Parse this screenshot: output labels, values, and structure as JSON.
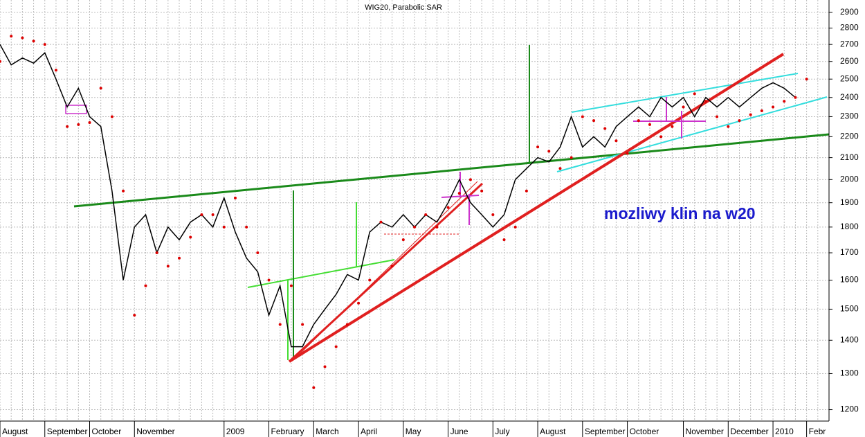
{
  "chart_data": {
    "type": "line",
    "title": "WIG20, Parabolic SAR",
    "annotation": "mozliwy klin na w20",
    "categories": [
      "August",
      null,
      null,
      null,
      "September",
      null,
      null,
      null,
      "October",
      null,
      null,
      null,
      "November",
      null,
      null,
      null,
      null,
      null,
      null,
      null,
      "2009",
      null,
      null,
      null,
      "February",
      null,
      null,
      null,
      "March",
      null,
      null,
      null,
      "April",
      null,
      null,
      null,
      "May",
      null,
      null,
      null,
      "June",
      null,
      null,
      null,
      "July",
      null,
      null,
      null,
      "August",
      null,
      null,
      null,
      "September",
      null,
      null,
      null,
      "October",
      null,
      null,
      null,
      null,
      "November",
      null,
      null,
      null,
      "December",
      null,
      null,
      null,
      "2010",
      null,
      null,
      "Febr",
      null,
      null
    ],
    "series": [
      {
        "color": "#000000",
        "style": "line",
        "values": [
          2700,
          2580,
          2620,
          2590,
          2650,
          2500,
          2350,
          2450,
          2300,
          2250,
          1950,
          1600,
          1800,
          1850,
          1700,
          1800,
          1750,
          1820,
          1850,
          1800,
          1920,
          1780,
          1680,
          1630,
          1480,
          1580,
          1380,
          1380,
          1450,
          1500,
          1550,
          1620,
          1600,
          1780,
          1820,
          1800,
          1850,
          1800,
          1850,
          1820,
          1900,
          2000,
          1900,
          1850,
          1800,
          1850,
          2000,
          2050,
          2100,
          2080,
          2150,
          2300,
          2150,
          2200,
          2150,
          2250,
          2300,
          2350,
          2300,
          2400,
          2350,
          2400,
          2300,
          2400,
          2350,
          2400,
          2350,
          2400,
          2450,
          2480,
          2450,
          2400,
          null,
          null,
          null
        ]
      },
      {
        "color": "#dd0000",
        "style": "dots",
        "values": [
          2600,
          2750,
          2740,
          2720,
          2700,
          2550,
          2250,
          2260,
          2270,
          2450,
          2300,
          1950,
          1480,
          1580,
          1700,
          1650,
          1680,
          1760,
          1850,
          1850,
          1800,
          1920,
          1800,
          1700,
          1600,
          1450,
          1580,
          1450,
          1260,
          1320,
          1380,
          1450,
          1520,
          1600,
          1820,
          1650,
          1750,
          1800,
          1850,
          1800,
          1880,
          1940,
          2000,
          1950,
          1850,
          1750,
          1800,
          1950,
          2150,
          2130,
          2050,
          2100,
          2300,
          2280,
          2240,
          2180,
          2120,
          2280,
          2260,
          2200,
          2250,
          2350,
          2420,
          2380,
          2300,
          2250,
          2280,
          2310,
          2330,
          2350,
          2380,
          2400,
          2500,
          null,
          null
        ]
      }
    ],
    "ylim": [
      1170,
      2980
    ],
    "yticks": [
      1200,
      1300,
      1400,
      1500,
      1600,
      1700,
      1800,
      1900,
      2000,
      2100,
      2200,
      2300,
      2400,
      2500,
      2600,
      2700,
      2800,
      2900
    ],
    "log_scale": true,
    "grid": true
  }
}
